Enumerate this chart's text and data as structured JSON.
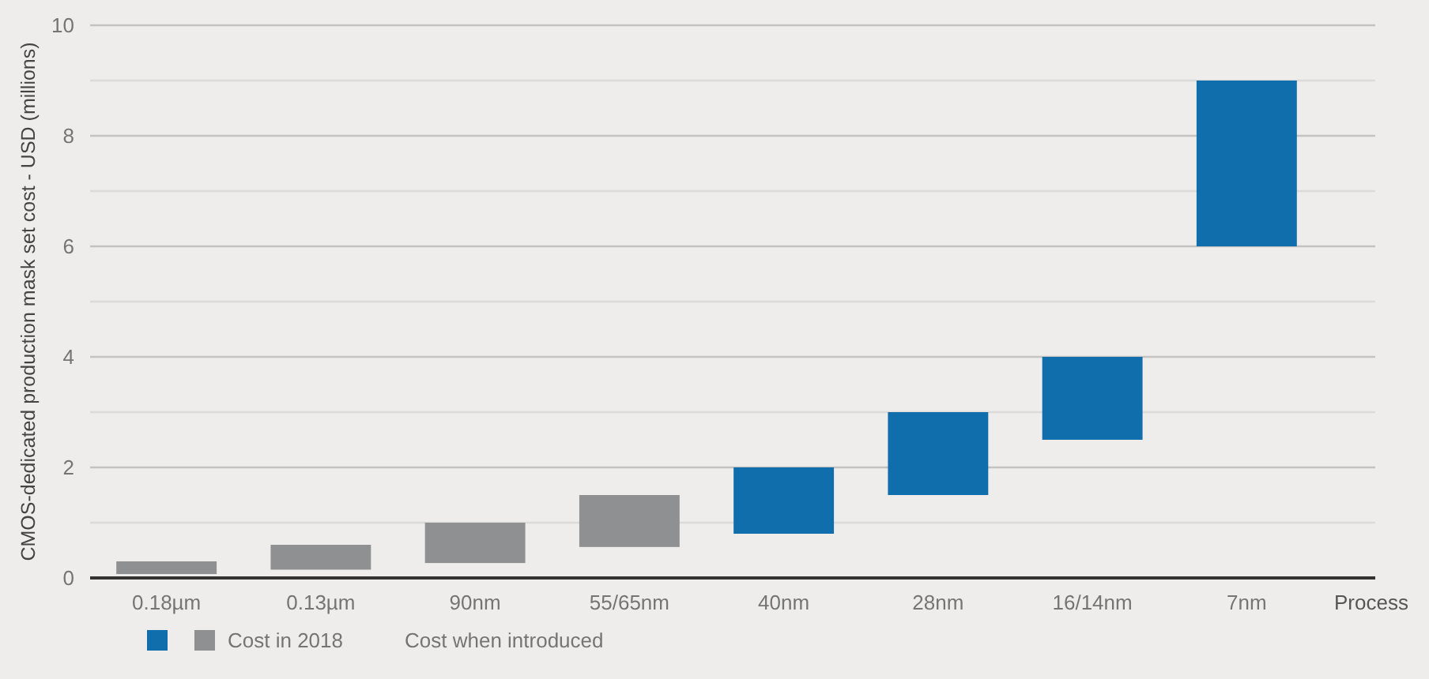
{
  "chart_data": {
    "type": "bar",
    "ylabel": "CMOS-dedicated production mask set cost - USD (millions)",
    "xlabel": "Process",
    "categories": [
      "0.18µm",
      "0.13µm",
      "90nm",
      "55/65nm",
      "40nm",
      "28nm",
      "16/14nm",
      "7nm"
    ],
    "base": [
      0.07,
      0.15,
      0.27,
      0.56,
      0.8,
      1.5,
      2.5,
      6
    ],
    "values": [
      0.23,
      0.45,
      0.73,
      0.94,
      1.2,
      1.5,
      1.5,
      3
    ],
    "colors": [
      "#8e9091",
      "#8e9091",
      "#8e9091",
      "#8e9091",
      "#116eac",
      "#116eac",
      "#116eac",
      "#116eac"
    ],
    "ylim": [
      0,
      10
    ],
    "yticks": [
      0,
      {
        "value": 1,
        "label": null
      },
      2,
      {
        "value": 3,
        "label": null
      },
      4,
      {
        "value": 5,
        "label": null
      },
      6,
      {
        "value": 7,
        "label": null
      },
      8,
      {
        "value": 9,
        "label": null
      },
      10
    ],
    "grid": "y",
    "annotations": [
      "Cost in 2018",
      "Cost when introduced"
    ]
  }
}
